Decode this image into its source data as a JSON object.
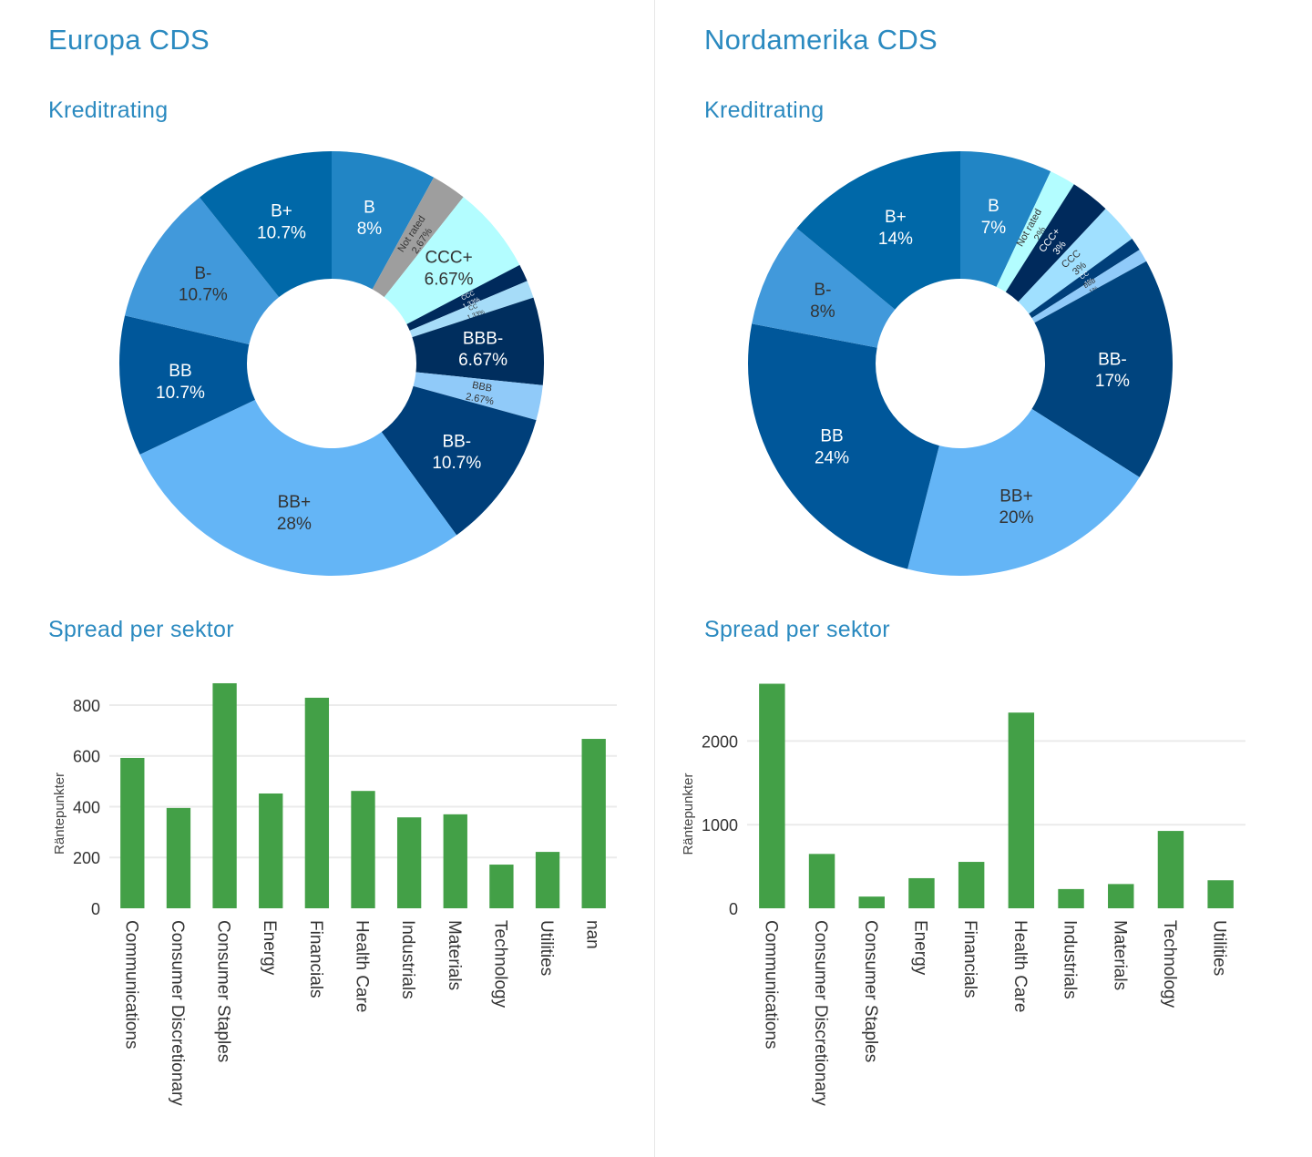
{
  "panels": [
    {
      "title": "Europa CDS",
      "rating_heading": "Kreditrating",
      "spread_heading": "Spread per sektor"
    },
    {
      "title": "Nordamerika CDS",
      "rating_heading": "Kreditrating",
      "spread_heading": "Spread per sektor"
    }
  ],
  "chart_data": [
    {
      "id": "europe-rating",
      "type": "pie",
      "donut": true,
      "title": "Kreditrating",
      "slices": [
        {
          "label": "B",
          "value": 8,
          "text": "8%",
          "color": "#2185c5",
          "text_color": "#ffffff"
        },
        {
          "label": "Not rated",
          "value": 2.67,
          "text": "2.67%",
          "color": "#9e9e9e",
          "text_color": "#333333"
        },
        {
          "label": "CCC+",
          "value": 6.67,
          "text": "6.67%",
          "color": "#b3fdff",
          "text_color": "#333333"
        },
        {
          "label": "CCC",
          "value": 1.33,
          "text": "1.33%",
          "color": "#002a5c",
          "text_color": "#ffffff"
        },
        {
          "label": "CC",
          "value": 1.33,
          "text": "1.33%",
          "color": "#a6dcf8",
          "text_color": "#333333"
        },
        {
          "label": "BBB-",
          "value": 6.67,
          "text": "6.67%",
          "color": "#002e5e",
          "text_color": "#ffffff"
        },
        {
          "label": "BBB",
          "value": 2.67,
          "text": "2.67%",
          "color": "#90caf9",
          "text_color": "#333333"
        },
        {
          "label": "BB-",
          "value": 10.7,
          "text": "10.7%",
          "color": "#003f7a",
          "text_color": "#ffffff"
        },
        {
          "label": "BB+",
          "value": 28,
          "text": "28%",
          "color": "#64b5f6",
          "text_color": "#333333"
        },
        {
          "label": "BB",
          "value": 10.7,
          "text": "10.7%",
          "color": "#00579a",
          "text_color": "#ffffff"
        },
        {
          "label": "B-",
          "value": 10.7,
          "text": "10.7%",
          "color": "#4199db",
          "text_color": "#333333"
        },
        {
          "label": "B+",
          "value": 10.7,
          "text": "10.7%",
          "color": "#0068a8",
          "text_color": "#ffffff"
        }
      ]
    },
    {
      "id": "northamerica-rating",
      "type": "pie",
      "donut": true,
      "title": "Kreditrating",
      "slices": [
        {
          "label": "B",
          "value": 7,
          "text": "7%",
          "color": "#2185c5",
          "text_color": "#ffffff"
        },
        {
          "label": "Not rated",
          "value": 2,
          "text": "2%",
          "color": "#b3fdff",
          "text_color": "#333333"
        },
        {
          "label": "CCC+",
          "value": 3,
          "text": "3%",
          "color": "#002a5c",
          "text_color": "#ffffff"
        },
        {
          "label": "CCC",
          "value": 3,
          "text": "3%",
          "color": "#a0e0ff",
          "text_color": "#333333"
        },
        {
          "label": "CC",
          "value": 1,
          "text": "1%",
          "color": "#003f7a",
          "text_color": "#ffffff"
        },
        {
          "label": "BBB",
          "value": 1,
          "text": "1%",
          "color": "#90caf9",
          "text_color": "#333333"
        },
        {
          "label": "BB-",
          "value": 17,
          "text": "17%",
          "color": "#00447e",
          "text_color": "#ffffff"
        },
        {
          "label": "BB+",
          "value": 20,
          "text": "20%",
          "color": "#64b5f6",
          "text_color": "#333333"
        },
        {
          "label": "BB",
          "value": 24,
          "text": "24%",
          "color": "#00579a",
          "text_color": "#ffffff"
        },
        {
          "label": "B-",
          "value": 8,
          "text": "8%",
          "color": "#4199db",
          "text_color": "#333333"
        },
        {
          "label": "B+",
          "value": 14,
          "text": "14%",
          "color": "#0068a8",
          "text_color": "#ffffff"
        }
      ]
    },
    {
      "id": "europe-spread",
      "type": "bar",
      "title": "Spread per sektor",
      "xlabel": "",
      "ylabel": "Räntepunkter",
      "ylim": [
        0,
        890
      ],
      "yticks": [
        0,
        200,
        400,
        600,
        800
      ],
      "grid": true,
      "bar_color": "#43a047",
      "categories": [
        "Communications",
        "Consumer Discretionary",
        "Consumer Staples",
        "Energy",
        "Financials",
        "Health Care",
        "Industrials",
        "Materials",
        "Technology",
        "Utilities",
        "nan"
      ],
      "values": [
        592,
        395,
        886,
        452,
        829,
        462,
        358,
        370,
        172,
        222,
        667
      ]
    },
    {
      "id": "northamerica-spread",
      "type": "bar",
      "title": "Spread per sektor",
      "xlabel": "",
      "ylabel": "Räntepunkter",
      "ylim": [
        0,
        2690
      ],
      "yticks": [
        0,
        1000,
        2000
      ],
      "grid": true,
      "bar_color": "#43a047",
      "categories": [
        "Communications",
        "Consumer Discretionary",
        "Consumer Staples",
        "Energy",
        "Financials",
        "Health Care",
        "Industrials",
        "Materials",
        "Technology",
        "Utilities"
      ],
      "values": [
        2685,
        650,
        140,
        360,
        555,
        2340,
        230,
        290,
        925,
        335
      ]
    }
  ]
}
